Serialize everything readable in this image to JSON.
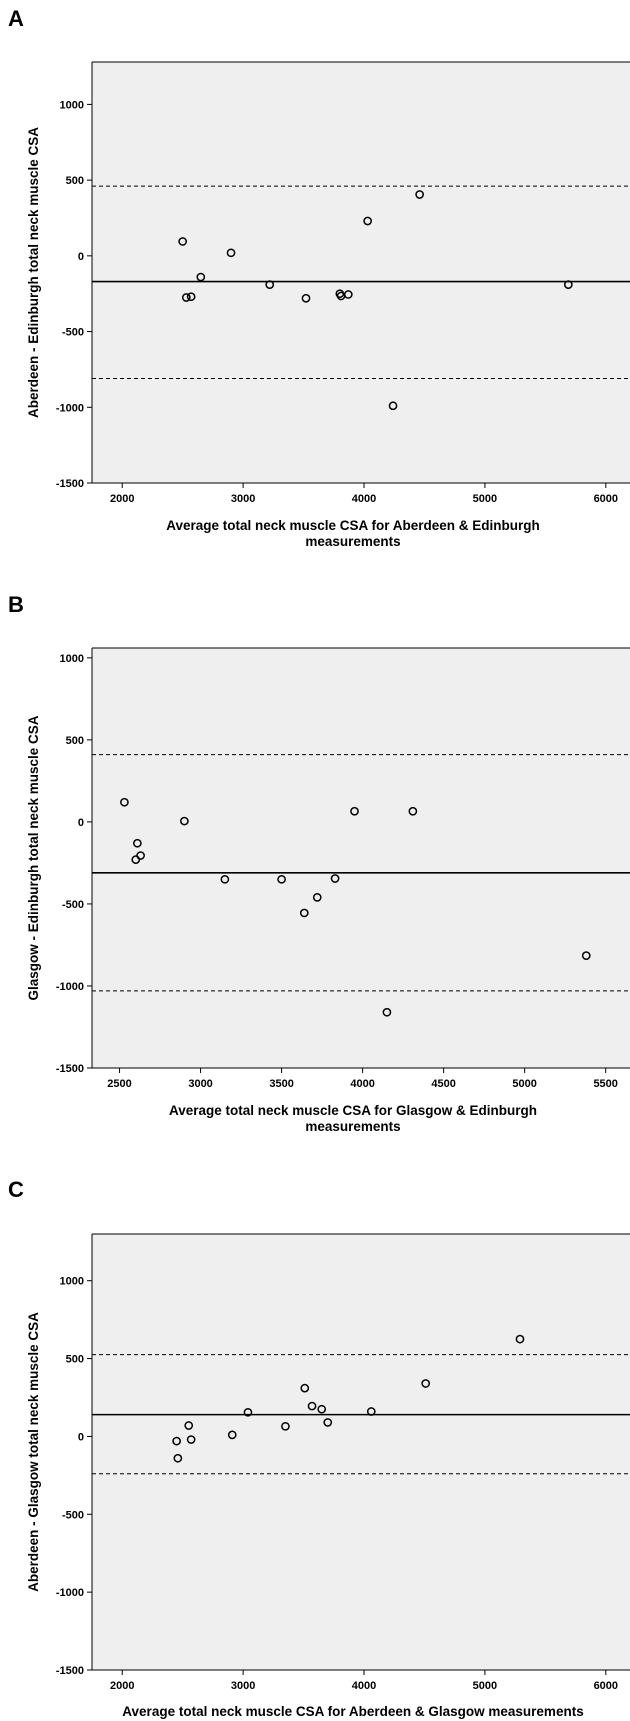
{
  "chart_data": [
    {
      "type": "scatter",
      "panel": "A",
      "xlabel": [
        "Average total neck muscle CSA for Aberdeen & Edinburgh",
        "measurements"
      ],
      "ylabel": "Aberdeen - Edinburgh total neck muscle CSA",
      "xlim": [
        1750,
        6200
      ],
      "ylim": [
        -1500,
        1280
      ],
      "xticks": [
        2000,
        3000,
        4000,
        5000,
        6000
      ],
      "yticks": [
        1000,
        500,
        0,
        -500,
        -1000,
        -1500
      ],
      "mean_line": -170,
      "limit_lines": [
        460,
        -810
      ],
      "points": [
        {
          "x": 2500,
          "y": 95
        },
        {
          "x": 2530,
          "y": -275
        },
        {
          "x": 2570,
          "y": -270
        },
        {
          "x": 2650,
          "y": -140
        },
        {
          "x": 2900,
          "y": 20
        },
        {
          "x": 3220,
          "y": -190
        },
        {
          "x": 3520,
          "y": -280
        },
        {
          "x": 3800,
          "y": -250
        },
        {
          "x": 3810,
          "y": -265
        },
        {
          "x": 3870,
          "y": -255
        },
        {
          "x": 4030,
          "y": 230
        },
        {
          "x": 4240,
          "y": -990
        },
        {
          "x": 4460,
          "y": 405
        },
        {
          "x": 5690,
          "y": -190
        }
      ]
    },
    {
      "type": "scatter",
      "panel": "B",
      "xlabel": [
        "Average total neck muscle CSA for Glasgow & Edinburgh",
        "measurements"
      ],
      "ylabel": "Glasgow - Edinburgh total neck muscle CSA",
      "xlim": [
        2330,
        5650
      ],
      "ylim": [
        -1500,
        1060
      ],
      "xticks": [
        2500,
        3000,
        3500,
        4000,
        4500,
        5000,
        5500
      ],
      "yticks": [
        1000,
        500,
        0,
        -500,
        -1000,
        -1500
      ],
      "mean_line": -310,
      "limit_lines": [
        410,
        -1030
      ],
      "points": [
        {
          "x": 2530,
          "y": 120
        },
        {
          "x": 2600,
          "y": -230
        },
        {
          "x": 2610,
          "y": -130
        },
        {
          "x": 2630,
          "y": -205
        },
        {
          "x": 2900,
          "y": 5
        },
        {
          "x": 3150,
          "y": -350
        },
        {
          "x": 3500,
          "y": -350
        },
        {
          "x": 3640,
          "y": -555
        },
        {
          "x": 3720,
          "y": -460
        },
        {
          "x": 3830,
          "y": -345
        },
        {
          "x": 3950,
          "y": 65
        },
        {
          "x": 4150,
          "y": -1160
        },
        {
          "x": 4310,
          "y": 65
        },
        {
          "x": 5380,
          "y": -815
        }
      ]
    },
    {
      "type": "scatter",
      "panel": "C",
      "xlabel": [
        "Average total neck muscle CSA for Aberdeen & Glasgow measurements"
      ],
      "ylabel": "Aberdeen - Glasgow total neck muscle CSA",
      "xlim": [
        1750,
        6200
      ],
      "ylim": [
        -1500,
        1300
      ],
      "xticks": [
        2000,
        3000,
        4000,
        5000,
        6000
      ],
      "yticks": [
        1000,
        500,
        0,
        -500,
        -1000,
        -1500
      ],
      "mean_line": 140,
      "limit_lines": [
        525,
        -240
      ],
      "points": [
        {
          "x": 2450,
          "y": -30
        },
        {
          "x": 2460,
          "y": -140
        },
        {
          "x": 2550,
          "y": 70
        },
        {
          "x": 2570,
          "y": -20
        },
        {
          "x": 2910,
          "y": 10
        },
        {
          "x": 3040,
          "y": 155
        },
        {
          "x": 3350,
          "y": 65
        },
        {
          "x": 3510,
          "y": 310
        },
        {
          "x": 3570,
          "y": 195
        },
        {
          "x": 3650,
          "y": 175
        },
        {
          "x": 3700,
          "y": 90
        },
        {
          "x": 4060,
          "y": 160
        },
        {
          "x": 4510,
          "y": 340
        },
        {
          "x": 5290,
          "y": 625
        }
      ]
    }
  ]
}
